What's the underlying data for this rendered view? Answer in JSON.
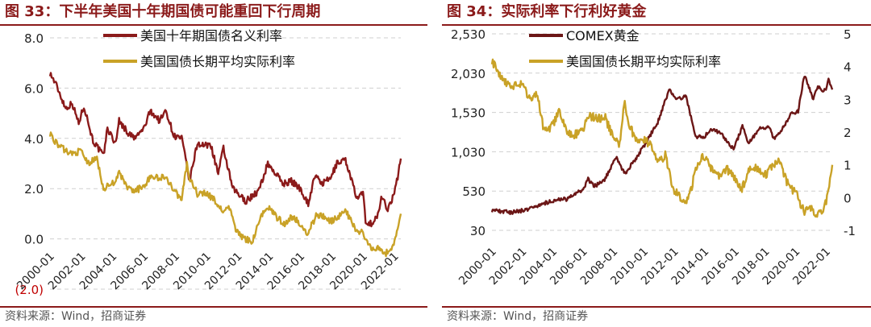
{
  "charts": [
    {
      "title": "图 33：下半年美国十年期国债可能重回下行周期",
      "source": "资料来源：Wind，招商证券",
      "chart_data": {
        "type": "line",
        "title": "下半年美国十年期国债可能重回下行周期",
        "x_start": "2000-01",
        "x_end": "2022-06",
        "x_ticks": [
          "2000-01",
          "2002-01",
          "2004-01",
          "2006-01",
          "2008-01",
          "2010-01",
          "2012-01",
          "2014-01",
          "2016-01",
          "2018-01",
          "2020-01",
          "2022-01"
        ],
        "y_ticks": [
          "8.0",
          "6.0",
          "4.0",
          "2.0",
          "0.0",
          "(2.0)"
        ],
        "ylim": [
          -2,
          8
        ],
        "grid": "horizontal dashed",
        "legend": "top-center",
        "series": [
          {
            "name": "美国十年期国债名义利率",
            "color": "#8b1a1a",
            "x": [
              "2000-01",
              "2000-06",
              "2001-01",
              "2001-06",
              "2001-11",
              "2002-03",
              "2002-10",
              "2003-06",
              "2003-09",
              "2004-03",
              "2004-06",
              "2005-01",
              "2005-06",
              "2006-01",
              "2006-06",
              "2007-01",
              "2007-06",
              "2007-12",
              "2008-06",
              "2008-12",
              "2009-06",
              "2010-01",
              "2010-04",
              "2010-10",
              "2011-02",
              "2011-09",
              "2012-07",
              "2013-05",
              "2013-12",
              "2014-06",
              "2014-12",
              "2015-06",
              "2016-01",
              "2016-07",
              "2016-12",
              "2017-06",
              "2017-12",
              "2018-05",
              "2018-11",
              "2019-03",
              "2019-08",
              "2020-01",
              "2020-03",
              "2020-08",
              "2021-01",
              "2021-03",
              "2021-08",
              "2022-01",
              "2022-03",
              "2022-06"
            ],
            "y": [
              6.6,
              6.1,
              5.2,
              5.4,
              4.6,
              5.3,
              3.9,
              3.3,
              4.4,
              3.8,
              4.7,
              4.2,
              4.0,
              4.4,
              5.1,
              4.7,
              5.1,
              4.1,
              4.0,
              2.3,
              3.8,
              3.7,
              3.8,
              2.6,
              3.6,
              2.0,
              1.5,
              1.9,
              3.0,
              2.6,
              2.2,
              2.3,
              2.0,
              1.4,
              2.5,
              2.2,
              2.4,
              3.0,
              3.2,
              2.6,
              1.6,
              1.8,
              0.7,
              0.6,
              1.0,
              1.7,
              1.2,
              1.8,
              2.3,
              3.2
            ]
          },
          {
            "name": "美国国债长期平均实际利率",
            "color": "#c9a227",
            "x": [
              "2000-01",
              "2000-06",
              "2001-01",
              "2001-06",
              "2002-01",
              "2002-06",
              "2003-01",
              "2003-06",
              "2004-01",
              "2004-06",
              "2005-01",
              "2005-06",
              "2006-01",
              "2006-06",
              "2007-01",
              "2007-06",
              "2007-12",
              "2008-06",
              "2008-10",
              "2008-12",
              "2009-06",
              "2010-01",
              "2010-06",
              "2011-01",
              "2011-06",
              "2011-12",
              "2012-06",
              "2012-12",
              "2013-06",
              "2013-12",
              "2014-06",
              "2015-01",
              "2015-06",
              "2016-01",
              "2016-06",
              "2017-01",
              "2017-06",
              "2018-01",
              "2018-06",
              "2018-12",
              "2019-06",
              "2019-09",
              "2020-01",
              "2020-03",
              "2020-08",
              "2021-01",
              "2021-06",
              "2021-12",
              "2022-03",
              "2022-06"
            ],
            "y": [
              4.2,
              3.8,
              3.5,
              3.4,
              3.5,
              3.0,
              3.2,
              2.0,
              2.2,
              2.6,
              2.0,
              1.9,
              2.1,
              2.5,
              2.4,
              2.5,
              1.9,
              1.6,
              3.0,
              2.4,
              1.8,
              1.8,
              1.6,
              1.1,
              1.3,
              0.3,
              0.0,
              -0.1,
              0.8,
              1.3,
              0.9,
              0.6,
              0.9,
              0.6,
              0.2,
              0.9,
              0.9,
              0.7,
              0.9,
              1.1,
              0.5,
              0.2,
              0.3,
              -0.1,
              -0.4,
              -0.3,
              -0.6,
              -0.3,
              0.2,
              1.0
            ]
          }
        ]
      }
    },
    {
      "title": "图 34：实际利率下行利好黄金",
      "source": "资料来源：Wind，招商证券",
      "chart_data": {
        "type": "line",
        "title": "实际利率下行利好黄金",
        "x_start": "2000-01",
        "x_end": "2022-06",
        "x_ticks": [
          "2000-01",
          "2002-01",
          "2004-01",
          "2006-01",
          "2008-01",
          "2010-01",
          "2012-01",
          "2014-01",
          "2016-01",
          "2018-01",
          "2020-01",
          "2022-01"
        ],
        "y_left_ticks": [
          "2,530",
          "2,030",
          "1,530",
          "1,030",
          "530",
          "30"
        ],
        "y_right_ticks": [
          "5",
          "4",
          "3",
          "2",
          "1",
          "0",
          "-1"
        ],
        "ylim_left": [
          30,
          2530
        ],
        "ylim_right": [
          -1,
          5
        ],
        "grid": "horizontal dashed",
        "legend": "top-center",
        "series": [
          {
            "name": "COMEX黄金",
            "axis": "left",
            "color": "#6b1616",
            "x": [
              "2000-01",
              "2001-04",
              "2002-01",
              "2003-01",
              "2004-01",
              "2005-01",
              "2006-01",
              "2006-05",
              "2006-10",
              "2007-06",
              "2008-03",
              "2008-10",
              "2009-06",
              "2010-01",
              "2010-12",
              "2011-09",
              "2012-03",
              "2012-10",
              "2013-06",
              "2013-12",
              "2014-06",
              "2015-01",
              "2015-12",
              "2016-07",
              "2016-12",
              "2017-09",
              "2018-04",
              "2018-08",
              "2019-06",
              "2019-09",
              "2020-03",
              "2020-08",
              "2021-03",
              "2021-06",
              "2022-01",
              "2022-03",
              "2022-06"
            ],
            "y": [
              285,
              260,
              280,
              345,
              410,
              430,
              550,
              680,
              590,
              670,
              960,
              750,
              930,
              1100,
              1400,
              1820,
              1680,
              1750,
              1230,
              1200,
              1320,
              1280,
              1060,
              1350,
              1140,
              1320,
              1340,
              1190,
              1400,
              1500,
              1550,
              2000,
              1700,
              1850,
              1800,
              1950,
              1820
            ]
          },
          {
            "name": "美国国债长期平均实际利率",
            "axis": "right",
            "color": "#c9a227",
            "x": [
              "2000-01",
              "2000-06",
              "2001-01",
              "2001-06",
              "2002-01",
              "2002-06",
              "2003-01",
              "2003-06",
              "2004-01",
              "2004-06",
              "2005-01",
              "2005-06",
              "2006-01",
              "2006-06",
              "2007-01",
              "2007-06",
              "2007-12",
              "2008-06",
              "2008-10",
              "2008-12",
              "2009-06",
              "2010-01",
              "2010-06",
              "2011-01",
              "2011-06",
              "2011-12",
              "2012-06",
              "2012-12",
              "2013-06",
              "2013-12",
              "2014-06",
              "2015-01",
              "2015-06",
              "2016-01",
              "2016-06",
              "2017-01",
              "2017-06",
              "2018-01",
              "2018-06",
              "2018-12",
              "2019-06",
              "2019-09",
              "2020-01",
              "2020-03",
              "2020-08",
              "2021-01",
              "2021-06",
              "2021-12",
              "2022-03",
              "2022-06"
            ],
            "y": [
              4.2,
              3.8,
              3.5,
              3.4,
              3.5,
              3.0,
              3.2,
              2.0,
              2.2,
              2.6,
              2.0,
              1.9,
              2.1,
              2.5,
              2.4,
              2.5,
              1.9,
              1.6,
              3.0,
              2.4,
              1.8,
              1.8,
              1.6,
              1.1,
              1.3,
              0.3,
              0.0,
              -0.1,
              0.8,
              1.3,
              0.9,
              0.6,
              0.9,
              0.6,
              0.2,
              0.9,
              0.9,
              0.7,
              0.9,
              1.1,
              0.5,
              0.2,
              0.3,
              -0.1,
              -0.4,
              -0.3,
              -0.6,
              -0.3,
              0.2,
              1.0
            ]
          }
        ]
      }
    }
  ]
}
